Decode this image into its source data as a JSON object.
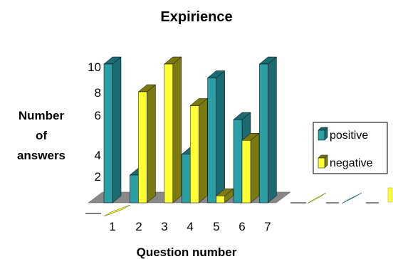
{
  "chart_data": {
    "type": "bar",
    "title": "Expirience",
    "xlabel": "Question number",
    "ylabel_lines": [
      "Number",
      "of",
      "answers"
    ],
    "categories": [
      "1",
      "2",
      "3",
      "4",
      "5",
      "6",
      "7"
    ],
    "y_tick_labels": [
      "2",
      "4",
      "6",
      "8",
      "10"
    ],
    "ylim": [
      0,
      10
    ],
    "series": [
      {
        "name": "positive",
        "values": [
          10,
          2,
          0,
          3.5,
          9,
          6,
          10
        ],
        "color": "#2a9fa6",
        "dark": "#1d6b72"
      },
      {
        "name": "negative",
        "values": [
          0,
          8,
          10,
          7,
          0.5,
          4.5,
          0
        ],
        "color": "#ffff33",
        "dark": "#7a7a10"
      }
    ],
    "legend": {
      "position": "right"
    },
    "view": "3d"
  }
}
